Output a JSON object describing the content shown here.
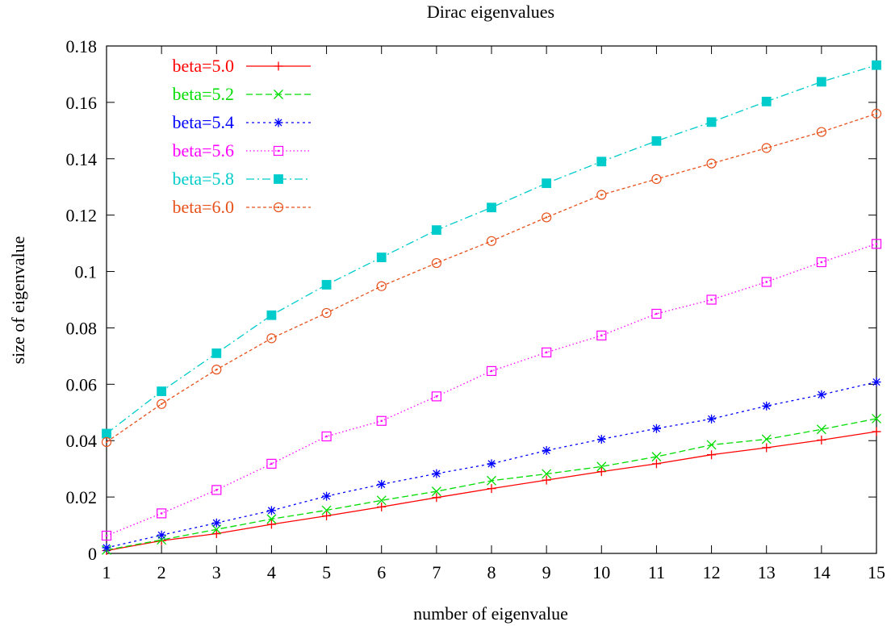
{
  "chart_data": {
    "type": "line",
    "title": "Dirac eigenvalues",
    "xlabel": "number of eigenvalue",
    "ylabel": "size of eigenvalue",
    "xlim": [
      1,
      15
    ],
    "ylim": [
      0,
      0.18
    ],
    "x_ticks": [
      "1",
      "2",
      "3",
      "4",
      "5",
      "6",
      "7",
      "8",
      "9",
      "10",
      "11",
      "12",
      "13",
      "14",
      "15"
    ],
    "y_ticks": [
      "0",
      "0.02",
      "0.04",
      "0.06",
      "0.08",
      "0.1",
      "0.12",
      "0.14",
      "0.16",
      "0.18"
    ],
    "grid": false,
    "legend_position": "top-left",
    "x": [
      1,
      2,
      3,
      4,
      5,
      6,
      7,
      8,
      9,
      10,
      11,
      12,
      13,
      14,
      15
    ],
    "series": [
      {
        "name": "beta=5.0",
        "color": "#ff0000",
        "dash": "solid",
        "marker": "plus",
        "values": [
          0.001,
          0.0045,
          0.007,
          0.0103,
          0.0133,
          0.0165,
          0.0198,
          0.023,
          0.026,
          0.029,
          0.0318,
          0.035,
          0.0375,
          0.0402,
          0.0432
        ]
      },
      {
        "name": "beta=5.2",
        "color": "#00dd00",
        "dash": "dashed",
        "marker": "cross",
        "values": [
          0.0012,
          0.0048,
          0.0085,
          0.0122,
          0.0153,
          0.0188,
          0.022,
          0.0258,
          0.0282,
          0.0308,
          0.0343,
          0.0385,
          0.0405,
          0.044,
          0.0478
        ]
      },
      {
        "name": "beta=5.4",
        "color": "#0000ff",
        "dash": "dotted",
        "marker": "star",
        "values": [
          0.002,
          0.0065,
          0.0108,
          0.0152,
          0.0203,
          0.0245,
          0.0283,
          0.0318,
          0.0365,
          0.0405,
          0.0443,
          0.0477,
          0.0523,
          0.0563,
          0.0608
        ]
      },
      {
        "name": "beta=5.6",
        "color": "#ff00ff",
        "dash": "fine-dotted",
        "marker": "square-open",
        "values": [
          0.0063,
          0.0142,
          0.0225,
          0.0318,
          0.0415,
          0.047,
          0.0557,
          0.0647,
          0.0713,
          0.0773,
          0.085,
          0.09,
          0.0963,
          0.1033,
          0.1098
        ]
      },
      {
        "name": "beta=5.8",
        "color": "#00cccc",
        "dash": "dash-dot",
        "marker": "square-filled",
        "values": [
          0.0425,
          0.0575,
          0.071,
          0.0845,
          0.0953,
          0.105,
          0.1147,
          0.1227,
          0.1313,
          0.139,
          0.1463,
          0.153,
          0.1603,
          0.1673,
          0.1732
        ]
      },
      {
        "name": "beta=6.0",
        "color": "#e8501a",
        "dash": "short-dashed",
        "marker": "circle-open",
        "values": [
          0.0395,
          0.053,
          0.0652,
          0.0763,
          0.0853,
          0.0948,
          0.103,
          0.1108,
          0.1192,
          0.1272,
          0.1328,
          0.1383,
          0.1438,
          0.1495,
          0.156
        ]
      }
    ]
  }
}
